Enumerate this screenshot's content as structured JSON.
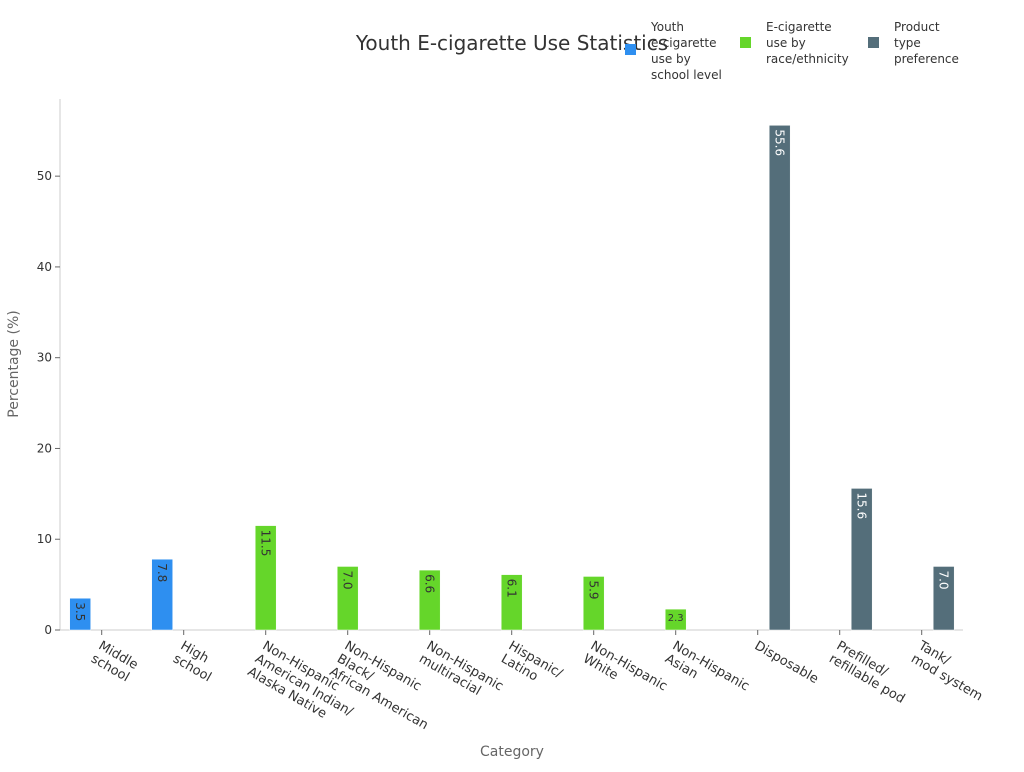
{
  "chart_data": {
    "type": "bar",
    "title": "Youth E-cigarette Use Statistics",
    "xlabel": "Category",
    "ylabel": "Percentage (%)",
    "ylim": [
      0,
      58.5
    ],
    "yticks": [
      0,
      10,
      20,
      30,
      40,
      50
    ],
    "grid": false,
    "legend_position": "top-right",
    "categories": [
      [
        "Middle",
        "school"
      ],
      [
        "High",
        "school"
      ],
      [
        "Non-Hispanic",
        "American Indian/",
        "Alaska Native"
      ],
      [
        "Non-Hispanic",
        "Black/",
        "African American"
      ],
      [
        "Non-Hispanic",
        "multiracial"
      ],
      [
        "Hispanic/",
        "Latino"
      ],
      [
        "Non-Hispanic",
        "White"
      ],
      [
        "Non-Hispanic",
        "Asian"
      ],
      [
        "Disposable"
      ],
      [
        "Prefilled/",
        "refillable pod"
      ],
      [
        "Tank/",
        "mod system"
      ]
    ],
    "series": [
      {
        "name": "Youth e-cigarette use by school level",
        "legend_lines": [
          "Youth",
          "e-cigarette",
          "use by",
          "school level"
        ],
        "color": "#2e8ff0",
        "label_color": "#333333",
        "values": [
          3.5,
          7.8,
          null,
          null,
          null,
          null,
          null,
          null,
          null,
          null,
          null
        ]
      },
      {
        "name": "E-cigarette use by race/ethnicity",
        "legend_lines": [
          "E-cigarette",
          "use by",
          "race/ethnicity"
        ],
        "color": "#65d62a",
        "label_color": "#333333",
        "values": [
          null,
          null,
          11.5,
          7.0,
          6.6,
          6.1,
          5.9,
          2.3,
          null,
          null,
          null
        ]
      },
      {
        "name": "Product type preference",
        "legend_lines": [
          "Product",
          "type",
          "preference"
        ],
        "color": "#546e7a",
        "label_color": "#ffffff",
        "values": [
          null,
          null,
          null,
          null,
          null,
          null,
          null,
          null,
          55.6,
          15.6,
          7.0
        ]
      }
    ]
  }
}
